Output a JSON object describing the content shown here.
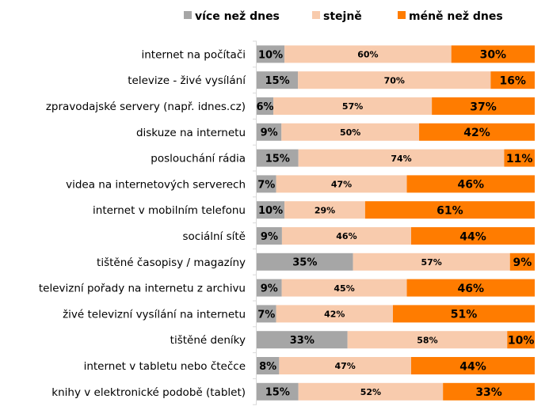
{
  "chart_data": {
    "type": "bar",
    "orientation": "horizontal",
    "stacked": true,
    "percent_stacked": true,
    "legend_position": "top",
    "grid": false,
    "categories": [
      "internet na počítači",
      "televize - živé vysílání",
      "zpravodajské servery (např. idnes.cz)",
      "diskuze na internetu",
      "poslouchání rádia",
      "videa na internetových serverech",
      "internet v mobilním telefonu",
      "sociální sítě",
      "tištěné časopisy / magazíny",
      "televizní pořady na internetu z archivu",
      "živé televizní vysílání na internetu",
      "tištěné deníky",
      "internet v tabletu nebo čtečce",
      "knihy v elektronické podobě (tablet)"
    ],
    "series": [
      {
        "name": "více než dnes",
        "color": "#a6a6a6",
        "values": [
          10,
          15,
          6,
          9,
          15,
          7,
          10,
          9,
          35,
          9,
          7,
          33,
          8,
          15
        ]
      },
      {
        "name": "stejně",
        "color": "#f8cbad",
        "values": [
          60,
          70,
          57,
          50,
          74,
          47,
          29,
          46,
          57,
          45,
          42,
          58,
          47,
          52
        ]
      },
      {
        "name": "méně než dnes",
        "color": "#ff7c00",
        "values": [
          30,
          16,
          37,
          42,
          11,
          46,
          61,
          44,
          9,
          46,
          51,
          10,
          44,
          33
        ]
      }
    ],
    "value_suffix": "%"
  }
}
